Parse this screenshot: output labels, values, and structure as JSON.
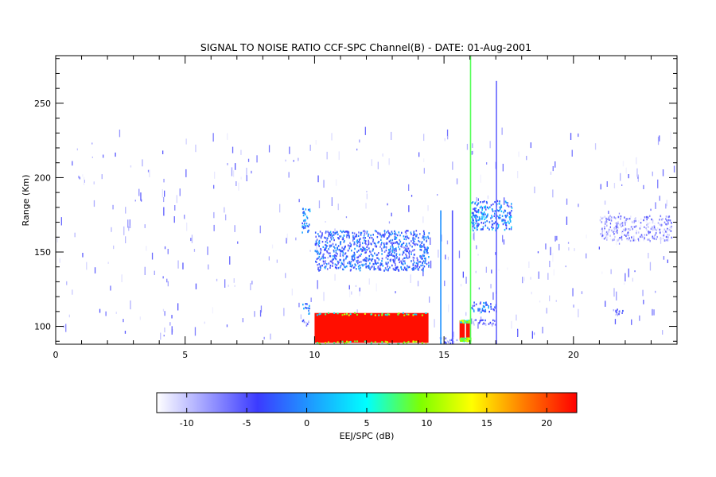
{
  "chart_data": {
    "type": "heatmap",
    "title": "SIGNAL TO NOISE RATIO CCF-SPC Channel(B) - DATE: 01-Aug-2001",
    "xlabel": "",
    "ylabel": "Range (Km)",
    "xlim": [
      0,
      24
    ],
    "ylim": [
      88,
      282
    ],
    "x_ticks": [
      0,
      5,
      10,
      15,
      20
    ],
    "y_ticks": [
      100,
      150,
      200,
      250
    ],
    "colorbar": {
      "label": "EEJ/SPC (dB)",
      "range": [
        -12.5,
        22.5
      ],
      "ticks": [
        -10,
        -5,
        0,
        5,
        10,
        15,
        20
      ],
      "colors": [
        "#ffffff",
        "#3b3bff",
        "#00ffff",
        "#7fff00",
        "#ffff00",
        "#ff8000",
        "#ff0000"
      ]
    },
    "regions": [
      {
        "x": [
          10.0,
          14.4
        ],
        "y": [
          89,
          109
        ],
        "value": 22
      },
      {
        "x": [
          15.6,
          15.8
        ],
        "y": [
          91,
          104
        ],
        "value": 22
      },
      {
        "x": [
          15.85,
          16.0
        ],
        "y": [
          91,
          104
        ],
        "value": 22
      },
      {
        "x": [
          14.8,
          15.5
        ],
        "y": [
          89,
          93
        ],
        "value": -6
      },
      {
        "x": [
          10.0,
          14.4
        ],
        "y": [
          138,
          165
        ],
        "value": -2
      },
      {
        "x": [
          9.5,
          9.8
        ],
        "y": [
          163,
          180
        ],
        "value": 0
      },
      {
        "x": [
          9.5,
          9.8
        ],
        "y": [
          109,
          116
        ],
        "value": -1
      },
      {
        "x": [
          9.5,
          9.8
        ],
        "y": [
          101,
          105
        ],
        "value": -6
      },
      {
        "x": [
          16.05,
          17.6
        ],
        "y": [
          165,
          185
        ],
        "value": 0
      },
      {
        "x": [
          16.05,
          17.0
        ],
        "y": [
          110,
          117
        ],
        "value": -1
      },
      {
        "x": [
          16.05,
          17.0
        ],
        "y": [
          101,
          105
        ],
        "value": -6
      },
      {
        "x": [
          16.0,
          16.05
        ],
        "y": [
          88,
          282
        ],
        "value": 8
      },
      {
        "x": [
          14.85,
          14.9
        ],
        "y": [
          88,
          178
        ],
        "value": 0
      },
      {
        "x": [
          15.3,
          15.35
        ],
        "y": [
          88,
          178
        ],
        "value": -5
      },
      {
        "x": [
          17.0,
          17.05
        ],
        "y": [
          88,
          265
        ],
        "value": -6
      },
      {
        "x": [
          21.4,
          21.9
        ],
        "y": [
          108,
          112
        ],
        "value": -6
      },
      {
        "x": [
          21.0,
          23.8
        ],
        "y": [
          158,
          175
        ],
        "value": -8
      }
    ],
    "scatter_noise": "sparse low-SNR returns (about -12 to -5 dB) across all hours and ranges"
  }
}
